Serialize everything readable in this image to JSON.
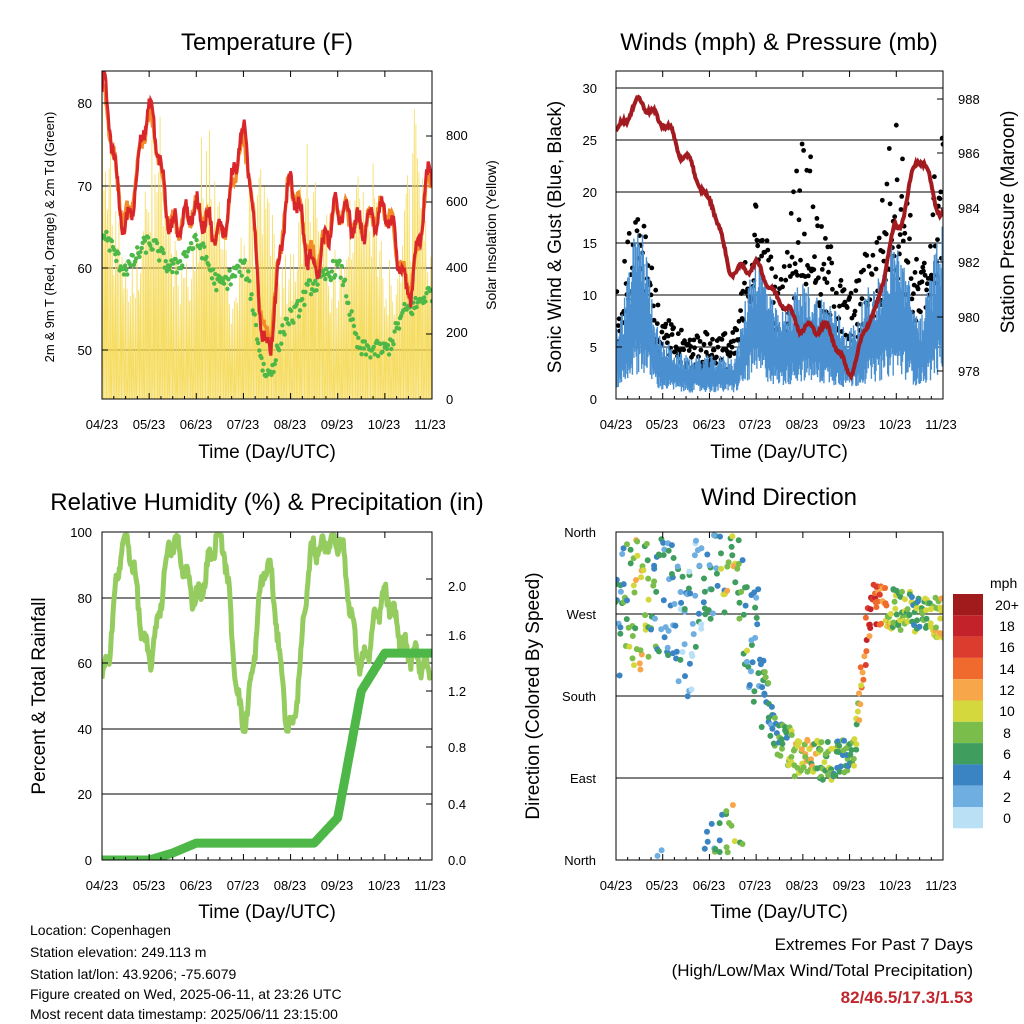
{
  "common": {
    "x_tick_labels": [
      "04/23",
      "05/23",
      "06/23",
      "07/23",
      "08/23",
      "09/23",
      "10/23",
      "11/23"
    ],
    "x_axis_label": "Time (Day/UTC)"
  },
  "panels": {
    "temperature": {
      "title": "Temperature (F)",
      "ylabel_left": "2m & 9m T (Red, Orange) & 2m Td (Green)",
      "ylabel_right": "Solar Insolation (Yellow)",
      "left_ticks": [
        "50",
        "60",
        "70",
        "80"
      ],
      "right_ticks": [
        "0",
        "200",
        "400",
        "600",
        "800"
      ]
    },
    "winds": {
      "title": "Winds (mph) & Pressure (mb)",
      "ylabel_left": "Sonic Wind & Gust (Blue, Black)",
      "ylabel_right": "Station Pressure (Maroon)",
      "left_ticks": [
        "0",
        "5",
        "10",
        "15",
        "20",
        "25",
        "30"
      ],
      "right_ticks": [
        "978",
        "980",
        "982",
        "984",
        "986",
        "988"
      ]
    },
    "humidity": {
      "title": "Relative Humidity (%) & Precipitation (in)",
      "ylabel_left": "Percent & Total Rainfall",
      "left_ticks": [
        "0",
        "20",
        "40",
        "60",
        "80",
        "100"
      ],
      "right_ticks": [
        "0.0",
        "0.4",
        "0.8",
        "1.2",
        "1.6",
        "2.0"
      ]
    },
    "wind_direction": {
      "title": "Wind Direction",
      "ylabel_left": "Direction (Colored By Speed)",
      "dir_ticks": [
        "North",
        "East",
        "South",
        "West",
        "North"
      ],
      "legend_title": "mph",
      "legend_labels": [
        "20+",
        "18",
        "16",
        "14",
        "12",
        "10",
        "8",
        "6",
        "4",
        "2",
        "0"
      ],
      "legend_colors": [
        "#a11a1c",
        "#c4222a",
        "#dc3c2d",
        "#ef6a2c",
        "#f7a64a",
        "#d5d83c",
        "#7bbd4b",
        "#3f9e5e",
        "#3b84c4",
        "#6eaee0",
        "#b9e0f5"
      ]
    }
  },
  "info": {
    "location": "Location: Copenhagen",
    "elevation": "Station elevation: 249.113 m",
    "latlon": "Station lat/lon: 43.9206; -75.6079",
    "created": "Figure created on Wed, 2025-06-11, at 23:26 UTC",
    "recent": "Most recent data timestamp: 2025/06/11 23:15:00"
  },
  "extremes": {
    "line1": "Extremes For Past 7 Days",
    "line2": "(High/Low/Max Wind/Total Precipitation)",
    "values": "82/46.5/17.3/1.53",
    "color": "#c0272d"
  },
  "colors": {
    "temp_2m": "#d9262a",
    "temp_9m": "#f28c28",
    "dewpoint": "#4db847",
    "solar": "#f5d850",
    "wind": "#4a90d0",
    "gust": "#000000",
    "pressure": "#a21b20",
    "rh": "#95cc60",
    "precip": "#4db847"
  },
  "chart_data": [
    {
      "type": "line",
      "panel": "temperature",
      "x": [
        "04/23",
        "05/08",
        "05/23",
        "06/08",
        "06/23",
        "07/08",
        "07/23",
        "08/08",
        "08/23",
        "09/08",
        "09/23",
        "10/08",
        "10/23",
        "11/08",
        "11/23"
      ],
      "series": [
        {
          "name": "2m T",
          "values": [
            82,
            65,
            79,
            65,
            67,
            64,
            76,
            50,
            70,
            60,
            67,
            65,
            67,
            57,
            72
          ]
        },
        {
          "name": "9m T",
          "values": [
            81,
            66,
            78,
            65,
            67,
            64,
            75,
            51,
            70,
            61,
            67,
            65,
            67,
            58,
            71
          ]
        },
        {
          "name": "2m Td",
          "values": [
            64,
            60,
            63,
            60,
            63,
            58,
            60,
            47,
            54,
            58,
            60,
            50,
            50,
            55,
            57
          ]
        }
      ],
      "ylim_left": [
        44,
        84
      ],
      "ylim_right": [
        0,
        980
      ]
    },
    {
      "type": "scatter",
      "panel": "winds",
      "x": [
        "04/23",
        "05/08",
        "05/23",
        "06/08",
        "06/23",
        "07/08",
        "07/23",
        "08/08",
        "08/23",
        "09/08",
        "09/23",
        "10/08",
        "10/23",
        "11/08",
        "11/23"
      ],
      "series": [
        {
          "name": "Sonic Wind",
          "values": [
            5,
            12,
            4,
            3,
            3,
            3,
            10,
            6,
            8,
            7,
            5,
            8,
            11,
            6,
            12
          ]
        },
        {
          "name": "Gust",
          "values": [
            8,
            16,
            6,
            5,
            5,
            5,
            15,
            9,
            20,
            12,
            8,
            12,
            21,
            10,
            20
          ]
        },
        {
          "name": "Station Pressure",
          "values": [
            986.5,
            987.5,
            986.8,
            985.5,
            984.0,
            981.5,
            981.7,
            980.5,
            979.5,
            979.5,
            978.0,
            980.0,
            983.0,
            985.5,
            983.5
          ]
        }
      ],
      "ylim_left": [
        0,
        31.5
      ],
      "ylim_right": [
        977,
        988.6
      ]
    },
    {
      "type": "line",
      "panel": "humidity",
      "x": [
        "04/23",
        "05/08",
        "05/23",
        "06/08",
        "06/23",
        "07/08",
        "07/23",
        "08/08",
        "08/23",
        "09/08",
        "09/23",
        "10/08",
        "10/23",
        "11/08",
        "11/23"
      ],
      "series": [
        {
          "name": "Relative Humidity",
          "values": [
            55,
            98,
            62,
            97,
            80,
            99,
            42,
            90,
            40,
            95,
            98,
            60,
            80,
            63,
            58
          ]
        },
        {
          "name": "Total Precipitation",
          "values": [
            0.0,
            0.0,
            0.0,
            0.05,
            0.12,
            0.12,
            0.12,
            0.12,
            0.12,
            0.12,
            0.3,
            1.2,
            1.47,
            1.47,
            1.47
          ]
        }
      ],
      "ylim_left": [
        0,
        100
      ],
      "ylim_right": [
        0,
        2.33
      ]
    },
    {
      "type": "scatter",
      "panel": "wind_direction",
      "x": [
        "04/23",
        "05/08",
        "05/23",
        "06/08",
        "06/23",
        "07/08",
        "07/23",
        "08/08",
        "08/23",
        "09/08",
        "09/23",
        "10/08",
        "10/23",
        "11/08",
        "11/23"
      ],
      "series": [
        {
          "name": "Direction (deg)",
          "values": [
            270,
            280,
            300,
            250,
            330,
            350,
            230,
            130,
            110,
            110,
            110,
            280,
            275,
            270,
            265
          ]
        },
        {
          "name": "Speed (mph)",
          "values": [
            4,
            10,
            4,
            3,
            4,
            9,
            4,
            6,
            10,
            8,
            6,
            16,
            8,
            7,
            10
          ]
        }
      ],
      "ylim": [
        0,
        360
      ]
    }
  ]
}
